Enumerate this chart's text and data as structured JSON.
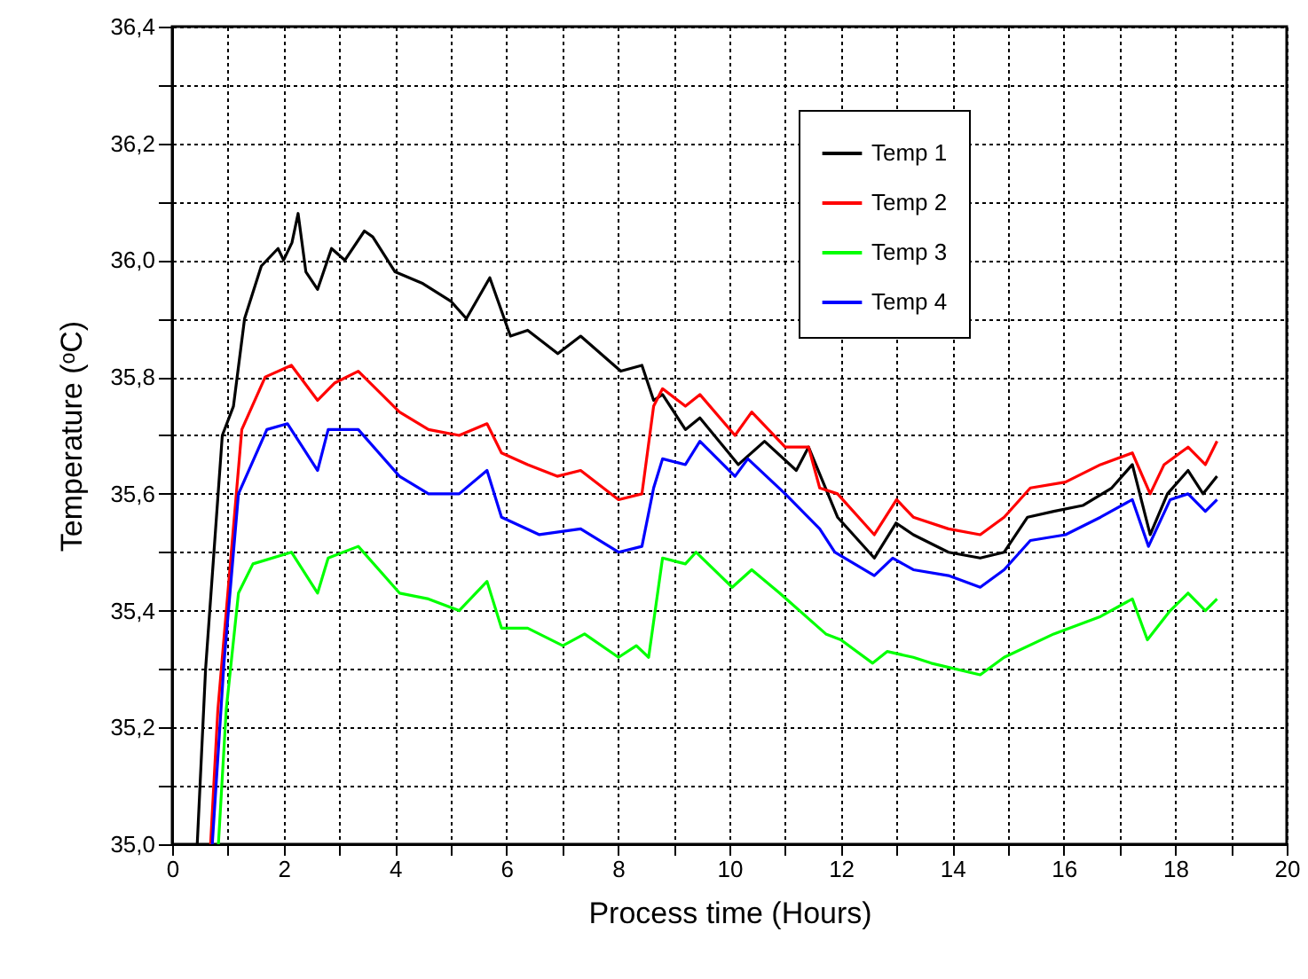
{
  "chart_data": {
    "type": "line",
    "xlabel": "Process time (Hours)",
    "ylabel": "Temperature (ᵒC)",
    "xlim": [
      0,
      20
    ],
    "ylim": [
      35.0,
      36.4
    ],
    "xticks": [
      0,
      {
        "value": 1,
        "label": null
      },
      2,
      {
        "value": 3,
        "label": null
      },
      4,
      {
        "value": 5,
        "label": null
      },
      6,
      {
        "value": 7,
        "label": null
      },
      8,
      {
        "value": 9,
        "label": null
      },
      10,
      {
        "value": 11,
        "label": null
      },
      12,
      {
        "value": 13,
        "label": null
      },
      14,
      {
        "value": 15,
        "label": null
      },
      16,
      {
        "value": 17,
        "label": null
      },
      18,
      {
        "value": 19,
        "label": null
      },
      20
    ],
    "yticks": [
      {
        "value": 35.0,
        "label": "35,0"
      },
      {
        "value": 35.1,
        "label": null
      },
      {
        "value": 35.2,
        "label": "35,2"
      },
      {
        "value": 35.3,
        "label": null
      },
      {
        "value": 35.4,
        "label": "35,4"
      },
      {
        "value": 35.5,
        "label": null
      },
      {
        "value": 35.6,
        "label": "35,6"
      },
      {
        "value": 35.7,
        "label": null
      },
      {
        "value": 35.8,
        "label": "35,8"
      },
      {
        "value": 35.9,
        "label": null
      },
      {
        "value": 36.0,
        "label": "36,0"
      },
      {
        "value": 36.1,
        "label": null
      },
      {
        "value": 36.2,
        "label": "36,2"
      },
      {
        "value": 36.3,
        "label": null
      },
      {
        "value": 36.4,
        "label": "36,4"
      }
    ],
    "grid": true,
    "legend": "top right",
    "marker": "none",
    "line_style": "solid",
    "series": [
      {
        "name": "Temp 1",
        "color": "#000000",
        "x": [
          0.45,
          0.5,
          0.6,
          0.75,
          0.9,
          1.1,
          1.3,
          1.6,
          1.9,
          2.0,
          2.15,
          2.26,
          2.4,
          2.61,
          2.86,
          3.1,
          3.45,
          3.6,
          4.0,
          4.5,
          5.0,
          5.28,
          5.7,
          6.07,
          6.38,
          6.92,
          7.33,
          8.05,
          8.43,
          8.64,
          8.8,
          9.21,
          9.47,
          10.16,
          10.63,
          11.2,
          11.42,
          11.94,
          12.6,
          12.99,
          13.3,
          13.93,
          14.5,
          14.93,
          15.35,
          15.82,
          16.34,
          16.86,
          17.23,
          17.55,
          17.86,
          18.23,
          18.5,
          18.75
        ],
        "values": [
          35.0,
          35.1,
          35.3,
          35.5,
          35.7,
          35.75,
          35.9,
          35.99,
          36.02,
          36.0,
          36.03,
          36.08,
          35.98,
          35.95,
          36.02,
          36.0,
          36.05,
          36.04,
          35.98,
          35.96,
          35.93,
          35.9,
          35.97,
          35.87,
          35.88,
          35.84,
          35.87,
          35.81,
          35.82,
          35.76,
          35.77,
          35.71,
          35.73,
          35.65,
          35.69,
          35.64,
          35.68,
          35.56,
          35.49,
          35.55,
          35.53,
          35.5,
          35.49,
          35.5,
          35.56,
          35.57,
          35.58,
          35.61,
          35.65,
          35.53,
          35.6,
          35.64,
          35.6,
          35.63
        ]
      },
      {
        "name": "Temp 2",
        "color": "#ff0000",
        "x": [
          0.69,
          0.82,
          1.25,
          1.67,
          2.14,
          2.61,
          2.92,
          3.34,
          4.08,
          4.6,
          5.15,
          5.65,
          5.91,
          6.38,
          6.91,
          7.33,
          8.01,
          8.43,
          8.64,
          8.8,
          9.21,
          9.47,
          10.1,
          10.4,
          11.0,
          11.42,
          11.62,
          11.94,
          12.6,
          13.0,
          13.3,
          13.93,
          14.5,
          14.93,
          15.4,
          16.03,
          16.66,
          17.23,
          17.55,
          17.8,
          18.23,
          18.54,
          18.75
        ],
        "values": [
          35.0,
          35.23,
          35.71,
          35.8,
          35.82,
          35.76,
          35.79,
          35.81,
          35.74,
          35.71,
          35.7,
          35.72,
          35.67,
          35.65,
          35.63,
          35.64,
          35.59,
          35.6,
          35.75,
          35.78,
          35.75,
          35.77,
          35.7,
          35.74,
          35.68,
          35.68,
          35.61,
          35.6,
          35.53,
          35.59,
          35.56,
          35.54,
          35.53,
          35.56,
          35.61,
          35.62,
          35.65,
          35.67,
          35.6,
          35.65,
          35.68,
          35.65,
          35.69
        ]
      },
      {
        "name": "Temp 3",
        "color": "#00ff00",
        "x": [
          0.83,
          0.97,
          1.19,
          1.45,
          2.14,
          2.61,
          2.8,
          3.34,
          4.08,
          4.6,
          5.15,
          5.65,
          5.91,
          6.38,
          7.01,
          7.4,
          8.01,
          8.33,
          8.55,
          8.8,
          9.21,
          9.4,
          10.05,
          10.4,
          10.9,
          11.73,
          12.0,
          12.57,
          12.83,
          13.3,
          13.62,
          14.5,
          14.93,
          15.82,
          16.66,
          17.23,
          17.5,
          17.91,
          18.23,
          18.54,
          18.75
        ],
        "values": [
          35.0,
          35.23,
          35.43,
          35.48,
          35.5,
          35.43,
          35.49,
          35.51,
          35.43,
          35.42,
          35.4,
          35.45,
          35.37,
          35.37,
          35.34,
          35.36,
          35.32,
          35.34,
          35.32,
          35.49,
          35.48,
          35.5,
          35.44,
          35.47,
          35.43,
          35.36,
          35.35,
          35.31,
          35.33,
          35.32,
          35.31,
          35.29,
          35.32,
          35.36,
          35.39,
          35.42,
          35.35,
          35.4,
          35.43,
          35.4,
          35.42
        ]
      },
      {
        "name": "Temp 4",
        "color": "#0000ff",
        "x": [
          0.72,
          0.93,
          1.19,
          1.7,
          2.07,
          2.61,
          2.8,
          3.34,
          4.08,
          4.6,
          5.15,
          5.65,
          5.91,
          6.59,
          7.33,
          8.01,
          8.43,
          8.64,
          8.8,
          9.21,
          9.47,
          10.1,
          10.33,
          11.0,
          11.62,
          11.89,
          12.6,
          12.93,
          13.3,
          13.93,
          14.5,
          14.93,
          15.4,
          16.03,
          16.66,
          17.23,
          17.52,
          17.91,
          18.23,
          18.54,
          18.75
        ],
        "values": [
          35.0,
          35.31,
          35.6,
          35.71,
          35.72,
          35.64,
          35.71,
          35.71,
          35.63,
          35.6,
          35.6,
          35.64,
          35.56,
          35.53,
          35.54,
          35.5,
          35.51,
          35.61,
          35.66,
          35.65,
          35.69,
          35.63,
          35.66,
          35.6,
          35.54,
          35.5,
          35.46,
          35.49,
          35.47,
          35.46,
          35.44,
          35.47,
          35.52,
          35.53,
          35.56,
          35.59,
          35.51,
          35.59,
          35.6,
          35.57,
          35.59
        ]
      }
    ]
  }
}
